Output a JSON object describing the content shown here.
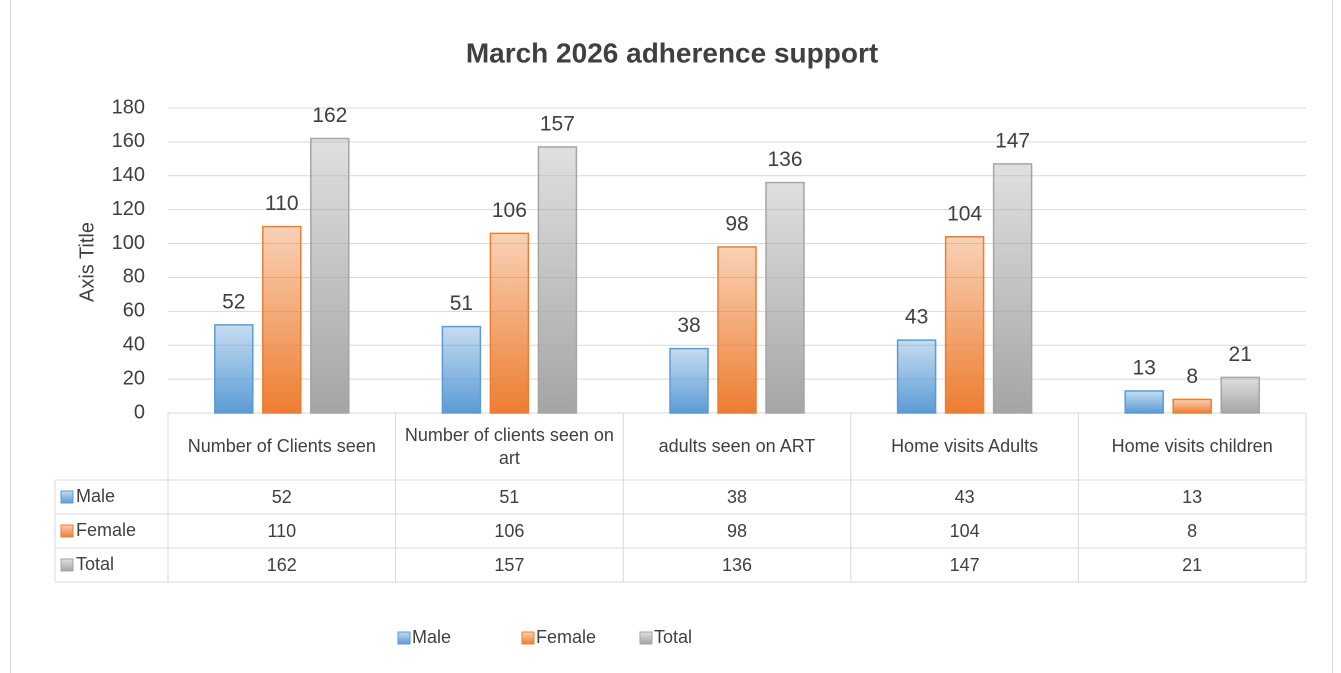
{
  "chart_data": {
    "type": "bar",
    "title": "March 2026 adherence support",
    "y_axis_label": "Axis Title",
    "categories": [
      "Number of Clients seen",
      "Number of clients seen on art",
      "adults seen on ART",
      "Home visits Adults",
      "Home visits children"
    ],
    "series": [
      {
        "name": "Male",
        "color": "#5b9bd5",
        "values": [
          52,
          51,
          38,
          43,
          13
        ]
      },
      {
        "name": "Female",
        "color": "#ed7d31",
        "values": [
          110,
          106,
          98,
          104,
          8
        ]
      },
      {
        "name": "Total",
        "color": "#a5a5a5",
        "values": [
          162,
          157,
          136,
          147,
          21
        ]
      }
    ],
    "ylim": [
      0,
      180
    ],
    "yticks": [
      0,
      20,
      40,
      60,
      80,
      100,
      120,
      140,
      160,
      180
    ],
    "grid": true,
    "legend": "bottom"
  }
}
